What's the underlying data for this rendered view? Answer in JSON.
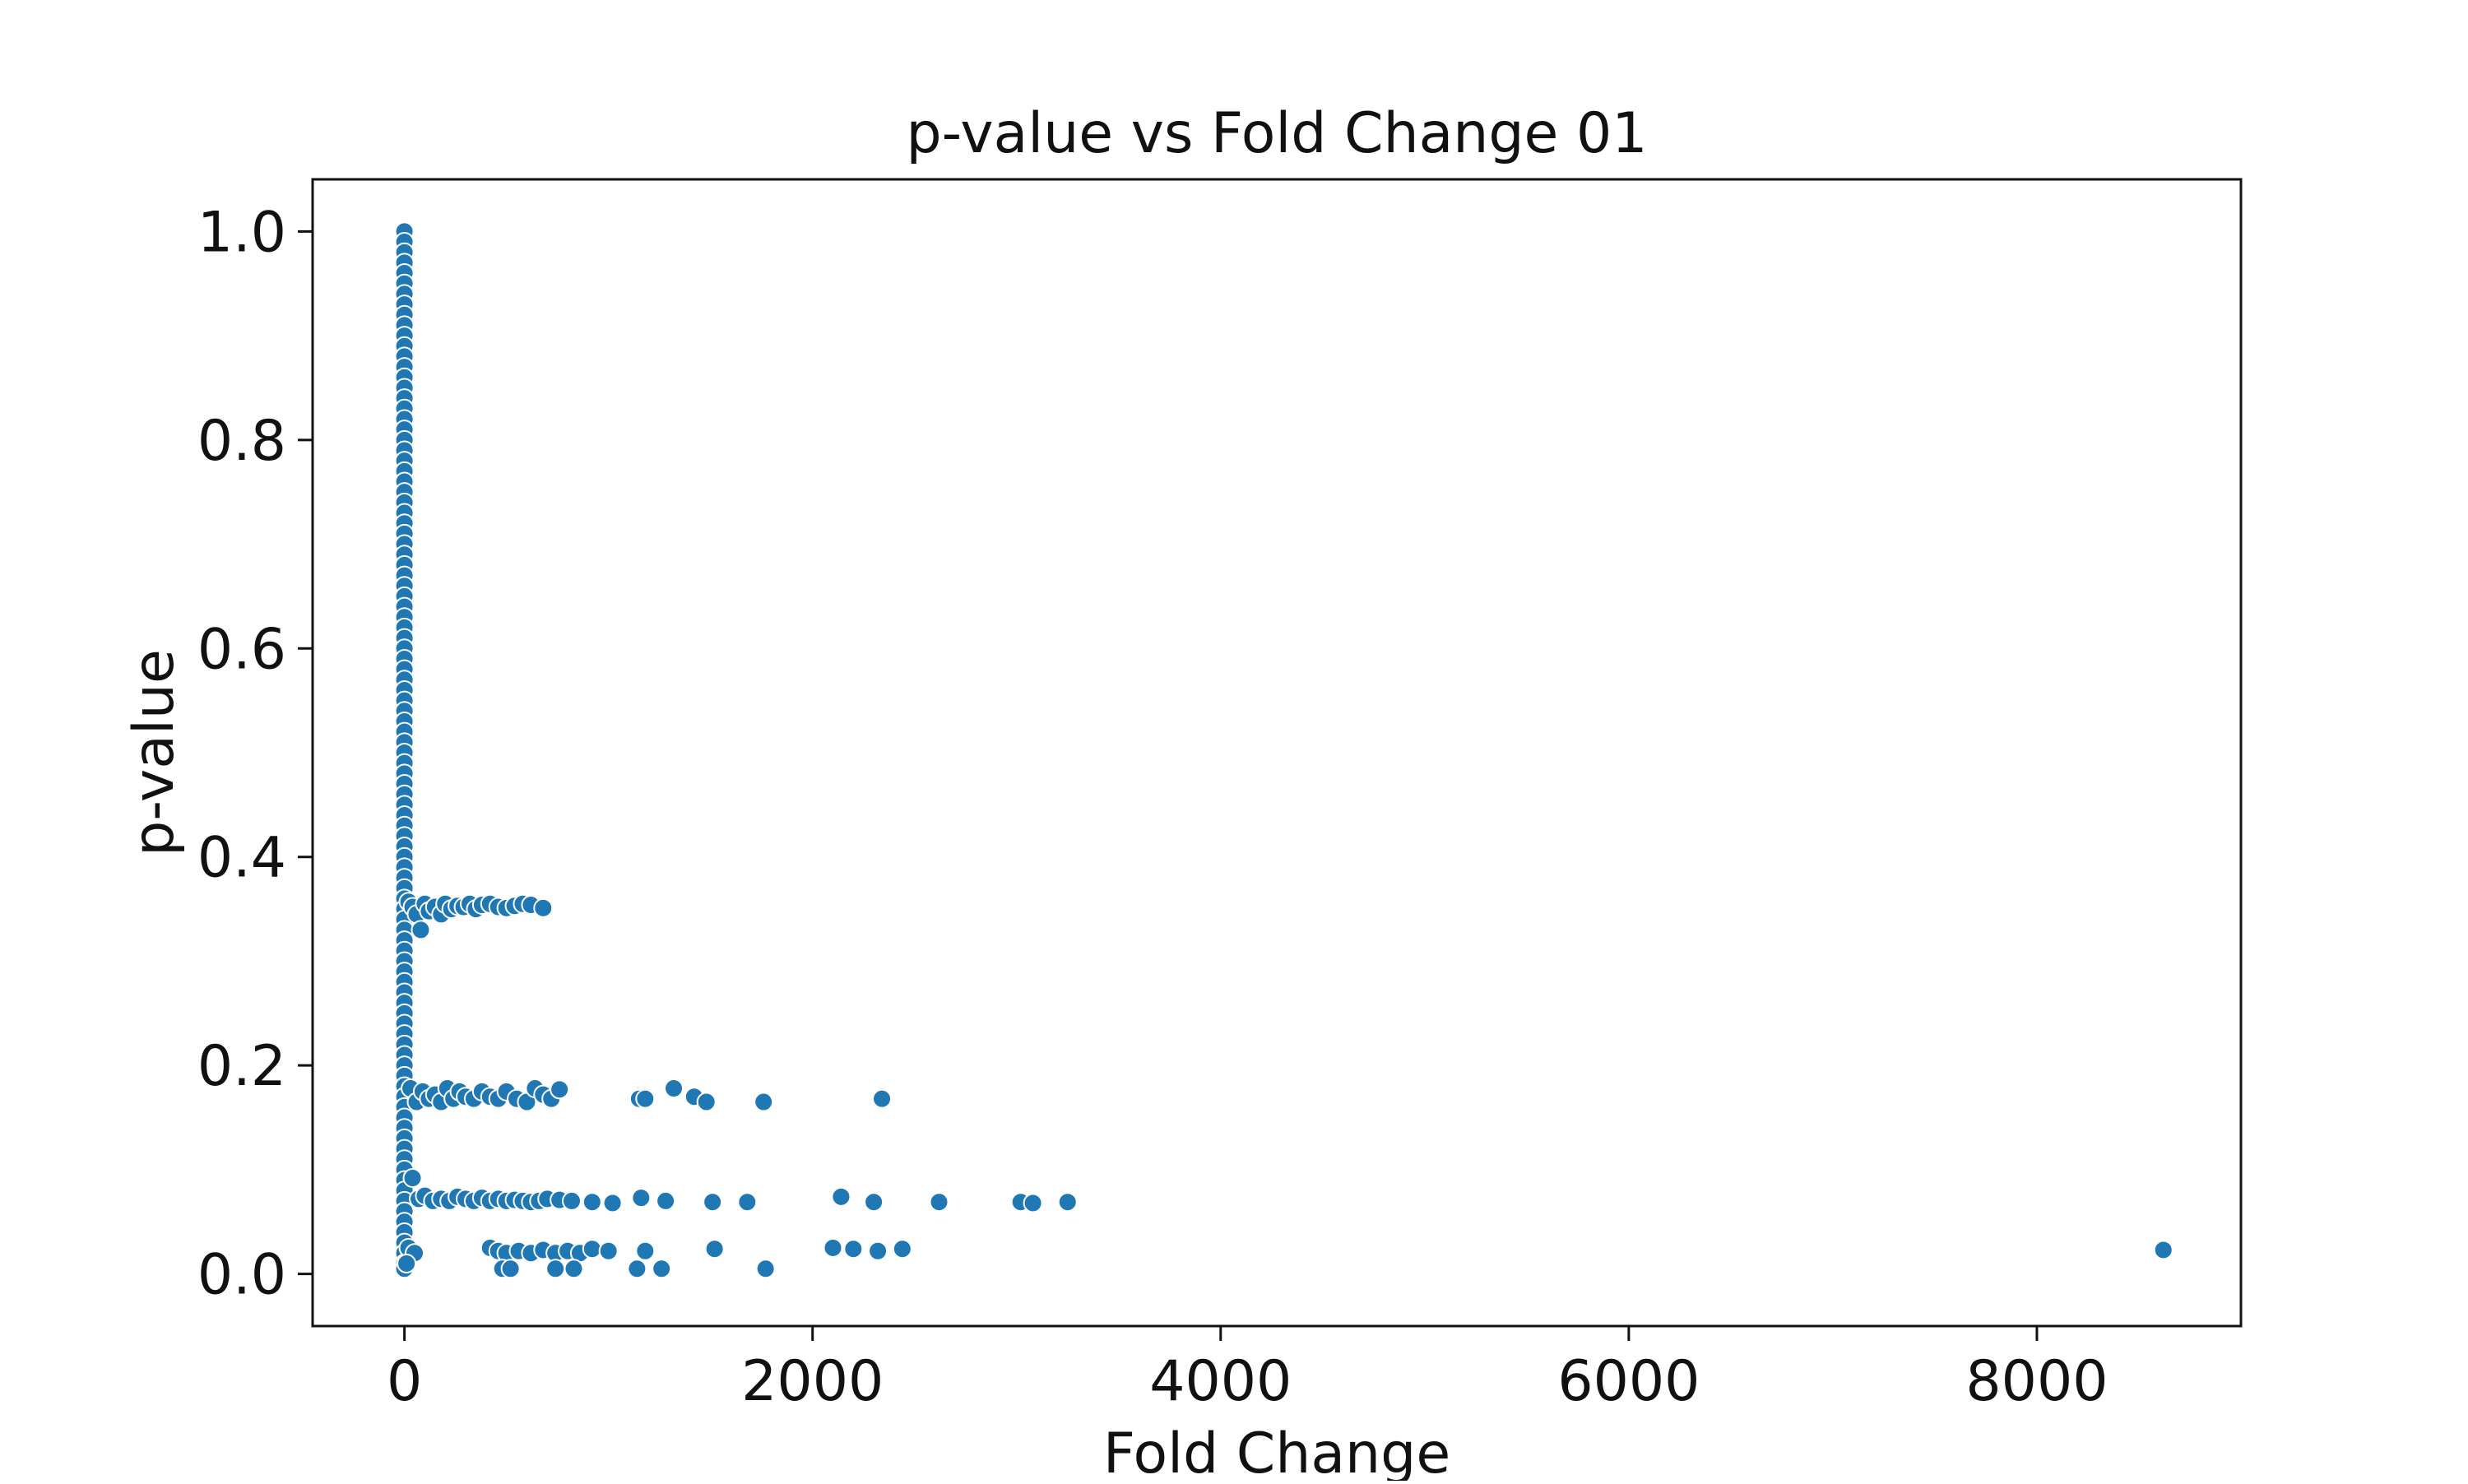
{
  "chart_data": {
    "type": "scatter",
    "title": "p-value vs Fold Change 01",
    "xlabel": "Fold Change",
    "ylabel": "p-value",
    "xlim": [
      -450,
      9000
    ],
    "ylim": [
      -0.05,
      1.05
    ],
    "xticks": [
      0,
      2000,
      4000,
      6000,
      8000
    ],
    "xtick_labels": [
      "0",
      "2000",
      "4000",
      "6000",
      "8000"
    ],
    "yticks": [
      0.0,
      0.2,
      0.4,
      0.6,
      0.8,
      1.0
    ],
    "ytick_labels": [
      "0.0",
      "0.2",
      "0.4",
      "0.6",
      "0.8",
      "1.0"
    ],
    "grid": false,
    "legend": "none",
    "marker_color": "#1f77b4",
    "marker_edge_color": "#ffffff",
    "series": [
      {
        "points": [
          [
            0,
            1.0
          ],
          [
            0,
            0.99
          ],
          [
            0,
            0.98
          ],
          [
            0,
            0.97
          ],
          [
            0,
            0.96
          ],
          [
            0,
            0.95
          ],
          [
            0,
            0.94
          ],
          [
            0,
            0.93
          ],
          [
            0,
            0.92
          ],
          [
            0,
            0.91
          ],
          [
            0,
            0.9
          ],
          [
            0,
            0.89
          ],
          [
            0,
            0.88
          ],
          [
            0,
            0.87
          ],
          [
            0,
            0.86
          ],
          [
            0,
            0.85
          ],
          [
            0,
            0.84
          ],
          [
            0,
            0.83
          ],
          [
            0,
            0.82
          ],
          [
            0,
            0.81
          ],
          [
            0,
            0.8
          ],
          [
            0,
            0.79
          ],
          [
            0,
            0.78
          ],
          [
            0,
            0.77
          ],
          [
            0,
            0.76
          ],
          [
            0,
            0.75
          ],
          [
            0,
            0.74
          ],
          [
            0,
            0.73
          ],
          [
            0,
            0.72
          ],
          [
            0,
            0.71
          ],
          [
            0,
            0.7
          ],
          [
            0,
            0.69
          ],
          [
            0,
            0.68
          ],
          [
            0,
            0.67
          ],
          [
            0,
            0.66
          ],
          [
            0,
            0.65
          ],
          [
            0,
            0.64
          ],
          [
            0,
            0.63
          ],
          [
            0,
            0.62
          ],
          [
            0,
            0.61
          ],
          [
            0,
            0.6
          ],
          [
            0,
            0.59
          ],
          [
            0,
            0.58
          ],
          [
            0,
            0.57
          ],
          [
            0,
            0.56
          ],
          [
            0,
            0.55
          ],
          [
            0,
            0.54
          ],
          [
            0,
            0.53
          ],
          [
            0,
            0.52
          ],
          [
            0,
            0.51
          ],
          [
            0,
            0.5
          ],
          [
            0,
            0.49
          ],
          [
            0,
            0.48
          ],
          [
            0,
            0.47
          ],
          [
            0,
            0.46
          ],
          [
            0,
            0.45
          ],
          [
            0,
            0.44
          ],
          [
            0,
            0.43
          ],
          [
            0,
            0.42
          ],
          [
            0,
            0.41
          ],
          [
            0,
            0.4
          ],
          [
            0,
            0.39
          ],
          [
            0,
            0.38
          ],
          [
            0,
            0.37
          ],
          [
            0,
            0.36
          ],
          [
            0,
            0.35
          ],
          [
            0,
            0.34
          ],
          [
            0,
            0.33
          ],
          [
            0,
            0.32
          ],
          [
            0,
            0.31
          ],
          [
            0,
            0.3
          ],
          [
            0,
            0.29
          ],
          [
            0,
            0.28
          ],
          [
            0,
            0.27
          ],
          [
            0,
            0.26
          ],
          [
            0,
            0.25
          ],
          [
            0,
            0.24
          ],
          [
            0,
            0.23
          ],
          [
            0,
            0.22
          ],
          [
            0,
            0.21
          ],
          [
            0,
            0.2
          ],
          [
            0,
            0.19
          ],
          [
            0,
            0.18
          ],
          [
            0,
            0.17
          ],
          [
            0,
            0.16
          ],
          [
            0,
            0.15
          ],
          [
            0,
            0.14
          ],
          [
            0,
            0.13
          ],
          [
            0,
            0.12
          ],
          [
            0,
            0.11
          ],
          [
            0,
            0.1
          ],
          [
            0,
            0.09
          ],
          [
            0,
            0.08
          ],
          [
            0,
            0.07
          ],
          [
            0,
            0.06
          ],
          [
            0,
            0.05
          ],
          [
            0,
            0.04
          ],
          [
            0,
            0.03
          ],
          [
            0,
            0.02
          ],
          [
            0,
            0.01
          ],
          [
            0,
            0.005
          ],
          [
            20,
            0.357
          ],
          [
            40,
            0.352
          ],
          [
            60,
            0.345
          ],
          [
            80,
            0.33
          ],
          [
            100,
            0.355
          ],
          [
            120,
            0.348
          ],
          [
            150,
            0.352
          ],
          [
            180,
            0.345
          ],
          [
            200,
            0.355
          ],
          [
            230,
            0.35
          ],
          [
            260,
            0.353
          ],
          [
            290,
            0.352
          ],
          [
            320,
            0.355
          ],
          [
            350,
            0.35
          ],
          [
            380,
            0.354
          ],
          [
            420,
            0.355
          ],
          [
            460,
            0.352
          ],
          [
            500,
            0.351
          ],
          [
            540,
            0.353
          ],
          [
            580,
            0.355
          ],
          [
            620,
            0.354
          ],
          [
            680,
            0.351
          ],
          [
            30,
            0.178
          ],
          [
            60,
            0.165
          ],
          [
            90,
            0.175
          ],
          [
            120,
            0.168
          ],
          [
            150,
            0.172
          ],
          [
            180,
            0.165
          ],
          [
            210,
            0.178
          ],
          [
            240,
            0.168
          ],
          [
            270,
            0.175
          ],
          [
            300,
            0.17
          ],
          [
            340,
            0.168
          ],
          [
            380,
            0.175
          ],
          [
            420,
            0.17
          ],
          [
            460,
            0.168
          ],
          [
            500,
            0.175
          ],
          [
            550,
            0.168
          ],
          [
            600,
            0.165
          ],
          [
            640,
            0.178
          ],
          [
            680,
            0.172
          ],
          [
            720,
            0.168
          ],
          [
            760,
            0.177
          ],
          [
            1150,
            0.168
          ],
          [
            1180,
            0.168
          ],
          [
            1320,
            0.178
          ],
          [
            1420,
            0.17
          ],
          [
            1480,
            0.165
          ],
          [
            1760,
            0.165
          ],
          [
            2340,
            0.168
          ],
          [
            40,
            0.092
          ],
          [
            70,
            0.072
          ],
          [
            100,
            0.075
          ],
          [
            140,
            0.07
          ],
          [
            180,
            0.072
          ],
          [
            220,
            0.07
          ],
          [
            260,
            0.074
          ],
          [
            300,
            0.072
          ],
          [
            340,
            0.07
          ],
          [
            380,
            0.073
          ],
          [
            420,
            0.07
          ],
          [
            460,
            0.072
          ],
          [
            500,
            0.07
          ],
          [
            540,
            0.071
          ],
          [
            580,
            0.07
          ],
          [
            620,
            0.069
          ],
          [
            660,
            0.07
          ],
          [
            700,
            0.072
          ],
          [
            760,
            0.071
          ],
          [
            820,
            0.07
          ],
          [
            920,
            0.069
          ],
          [
            1020,
            0.068
          ],
          [
            1160,
            0.073
          ],
          [
            1280,
            0.07
          ],
          [
            1510,
            0.069
          ],
          [
            1680,
            0.069
          ],
          [
            2140,
            0.074
          ],
          [
            2300,
            0.069
          ],
          [
            2620,
            0.069
          ],
          [
            3020,
            0.069
          ],
          [
            3080,
            0.068
          ],
          [
            3250,
            0.069
          ],
          [
            20,
            0.025
          ],
          [
            50,
            0.02
          ],
          [
            10,
            0.01
          ],
          [
            420,
            0.025
          ],
          [
            460,
            0.022
          ],
          [
            500,
            0.02
          ],
          [
            560,
            0.022
          ],
          [
            620,
            0.02
          ],
          [
            680,
            0.023
          ],
          [
            740,
            0.02
          ],
          [
            800,
            0.022
          ],
          [
            860,
            0.02
          ],
          [
            920,
            0.024
          ],
          [
            1000,
            0.022
          ],
          [
            1180,
            0.022
          ],
          [
            1520,
            0.024
          ],
          [
            2100,
            0.025
          ],
          [
            2200,
            0.024
          ],
          [
            2320,
            0.022
          ],
          [
            2440,
            0.024
          ],
          [
            8620,
            0.023
          ],
          [
            480,
            0.005
          ],
          [
            520,
            0.005
          ],
          [
            740,
            0.005
          ],
          [
            830,
            0.005
          ],
          [
            1140,
            0.005
          ],
          [
            1260,
            0.005
          ],
          [
            1770,
            0.005
          ]
        ]
      }
    ]
  }
}
